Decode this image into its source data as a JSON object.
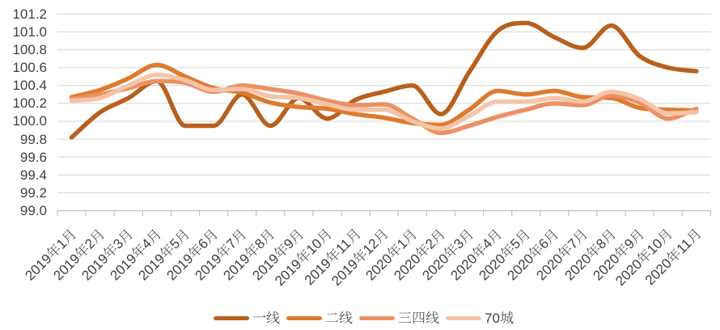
{
  "chart_data": {
    "type": "line",
    "smooth": true,
    "categories": [
      "2019年1月",
      "2019年2月",
      "2019年3月",
      "2019年4月",
      "2019年5月",
      "2019年6月",
      "2019年7月",
      "2019年8月",
      "2019年9月",
      "2019年10月",
      "2019年11月",
      "2019年12月",
      "2020年1月",
      "2020年2月",
      "2020年3月",
      "2020年4月",
      "2020年5月",
      "2020年6月",
      "2020年7月",
      "2020年8月",
      "2020年9月",
      "2020年10月",
      "2020年11月"
    ],
    "series": [
      {
        "name": "一线",
        "color": "#B8601E",
        "values": [
          99.82,
          100.1,
          100.26,
          100.45,
          99.95,
          99.95,
          100.3,
          99.95,
          100.26,
          100.03,
          100.24,
          100.33,
          100.4,
          100.08,
          100.55,
          101.01,
          101.1,
          100.94,
          100.82,
          101.07,
          100.73,
          100.6,
          100.56
        ]
      },
      {
        "name": "二线",
        "color": "#DE7B2E",
        "values": [
          100.27,
          100.35,
          100.48,
          100.63,
          100.5,
          100.37,
          100.32,
          100.21,
          100.16,
          100.14,
          100.08,
          100.04,
          99.98,
          99.96,
          100.13,
          100.34,
          100.3,
          100.34,
          100.27,
          100.26,
          100.15,
          100.13,
          100.12
        ]
      },
      {
        "name": "三四线",
        "color": "#EC9166",
        "values": [
          100.25,
          100.3,
          100.37,
          100.45,
          100.43,
          100.33,
          100.4,
          100.36,
          100.31,
          100.23,
          100.18,
          100.19,
          100.03,
          99.87,
          99.95,
          100.05,
          100.13,
          100.2,
          100.18,
          100.29,
          100.21,
          100.03,
          100.14
        ]
      },
      {
        "name": "70城",
        "color": "#F5C4A6",
        "values": [
          100.23,
          100.26,
          100.4,
          100.52,
          100.46,
          100.35,
          100.36,
          100.28,
          100.26,
          100.19,
          100.13,
          100.13,
          100.0,
          99.92,
          100.06,
          100.22,
          100.22,
          100.26,
          100.22,
          100.33,
          100.25,
          100.09,
          100.1
        ]
      }
    ],
    "ylim": [
      99.0,
      101.2
    ],
    "y_tick_step": 0.2,
    "y_tick_labels": [
      "101.2",
      "101.0",
      "100.8",
      "100.6",
      "100.4",
      "100.2",
      "100.0",
      "99.8",
      "99.6",
      "99.4",
      "99.2",
      "99.0"
    ],
    "xlabel": "",
    "ylabel": "",
    "grid": "horizontal",
    "legend_position": "bottom"
  }
}
